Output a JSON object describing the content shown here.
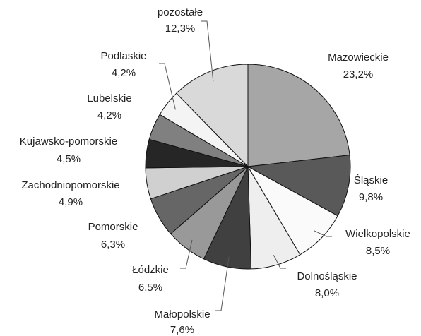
{
  "chart_data": {
    "type": "pie",
    "categories": [
      "Mazowieckie",
      "Śląskie",
      "Wielkopolskie",
      "Dolnośląskie",
      "Małopolskie",
      "Łódzkie",
      "Pomorskie",
      "Zachodniopomorskie",
      "Kujawsko-pomorskie",
      "Lubelskie",
      "Podlaskie",
      "pozostałe"
    ],
    "values": [
      23.2,
      9.8,
      8.5,
      8.0,
      7.6,
      6.5,
      6.3,
      4.9,
      4.5,
      4.2,
      4.2,
      12.3
    ],
    "value_labels": [
      "23,2%",
      "9,8%",
      "8,5%",
      "8,0%",
      "7,6%",
      "6,5%",
      "6,3%",
      "4,9%",
      "4,5%",
      "4,2%",
      "4,2%",
      "12,3%"
    ],
    "colors": [
      "#a6a6a6",
      "#595959",
      "#fafafa",
      "#eeeeee",
      "#404040",
      "#999999",
      "#666666",
      "#d0d0d0",
      "#262626",
      "#808080",
      "#f4f4f4",
      "#d9d9d9"
    ]
  }
}
